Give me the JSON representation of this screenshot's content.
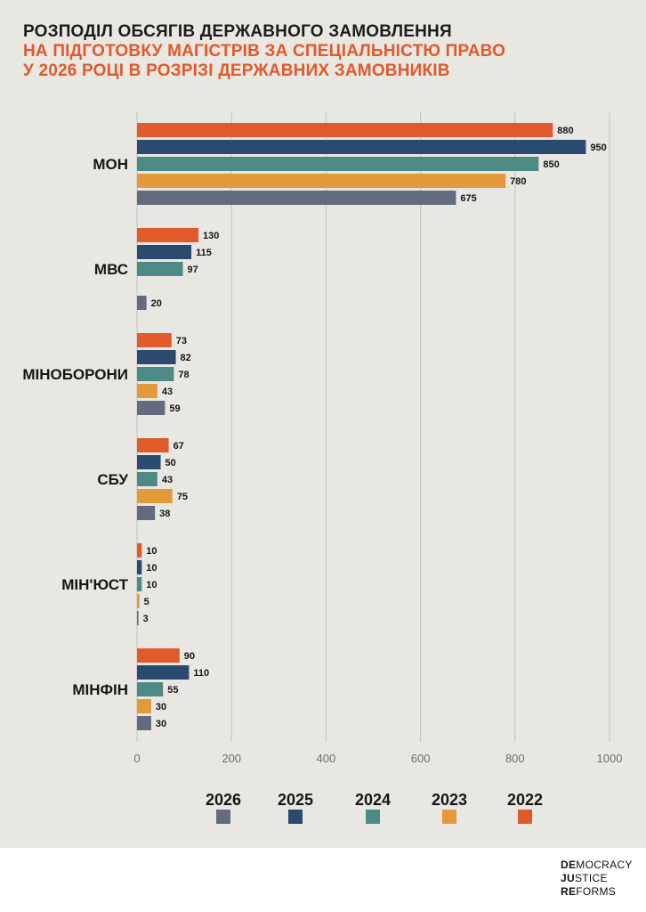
{
  "title": {
    "line1": "РОЗПОДІЛ ОБСЯГІВ ДЕРЖАВНОГО ЗАМОВЛЕННЯ",
    "line2": "НА ПІДГОТОВКУ МАГІСТРІВ ЗА СПЕЦІАЛЬНІСТЮ ПРАВО",
    "line3": "У 2026 РОЦІ В РОЗРІЗІ ДЕРЖАВНИХ ЗАМОВНИКІВ"
  },
  "chart_data": {
    "type": "bar",
    "orientation": "horizontal",
    "categories": [
      "МОН",
      "МВС",
      "МІНОБОРОНИ",
      "СБУ",
      "МІН'ЮСТ",
      "МІНФІН"
    ],
    "series": [
      {
        "name": "2022",
        "color": "#e05a2b",
        "values": [
          880,
          130,
          73,
          67,
          10,
          90
        ]
      },
      {
        "name": "2025",
        "color": "#2b4a6f",
        "values": [
          950,
          115,
          82,
          50,
          10,
          110
        ]
      },
      {
        "name": "2024",
        "color": "#4e8a85",
        "values": [
          850,
          97,
          78,
          43,
          10,
          55
        ]
      },
      {
        "name": "2023",
        "color": "#e39a3a",
        "values": [
          780,
          null,
          43,
          75,
          5,
          30
        ]
      },
      {
        "name": "2026",
        "color": "#646b80",
        "values": [
          675,
          20,
          59,
          38,
          3,
          30
        ]
      }
    ],
    "xlim": [
      0,
      1000
    ],
    "xticks": [
      0,
      200,
      400,
      600,
      800,
      1000
    ],
    "grid": true,
    "legend_order": [
      "2026",
      "2025",
      "2024",
      "2023",
      "2022"
    ],
    "legend_position": "bottom"
  },
  "logo": {
    "line1_bold": "DE",
    "line1_rest": "MOCRACY",
    "line2_bold": "JU",
    "line2_rest": "STICE",
    "line3_bold": "RE",
    "line3_rest": "FORMS"
  }
}
